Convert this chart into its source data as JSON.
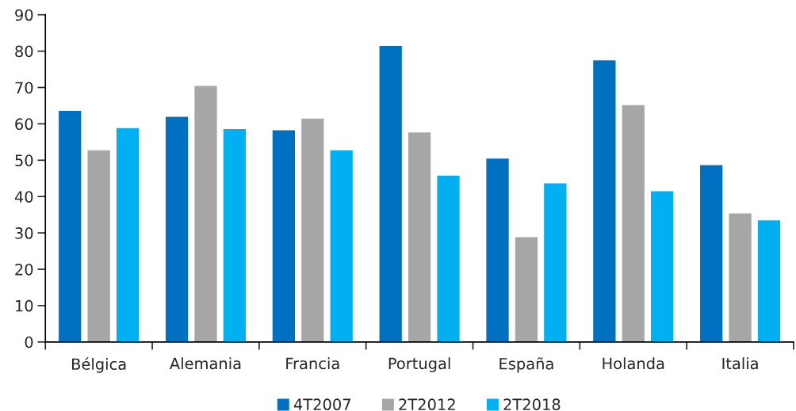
{
  "chart_data": {
    "type": "bar",
    "categories": [
      "Bélgica",
      "Alemania",
      "Francia",
      "Portugal",
      "España",
      "Holanda",
      "Italia"
    ],
    "series": [
      {
        "name": "4T2007",
        "color": "#0070c0",
        "values": [
          63.7,
          62.1,
          58.4,
          81.6,
          50.6,
          77.6,
          48.8
        ]
      },
      {
        "name": "2T2012",
        "color": "#a6a6a6",
        "values": [
          52.9,
          70.6,
          61.6,
          57.8,
          29.0,
          65.3,
          35.5
        ]
      },
      {
        "name": "2T2018",
        "color": "#00b0f0",
        "values": [
          59.0,
          58.7,
          52.9,
          45.9,
          43.8,
          41.6,
          33.6
        ]
      }
    ],
    "ylim": [
      0,
      90
    ],
    "yticks": [
      0,
      10,
      20,
      30,
      40,
      50,
      60,
      70,
      80,
      90
    ],
    "grid": false,
    "legend": "bottom"
  }
}
